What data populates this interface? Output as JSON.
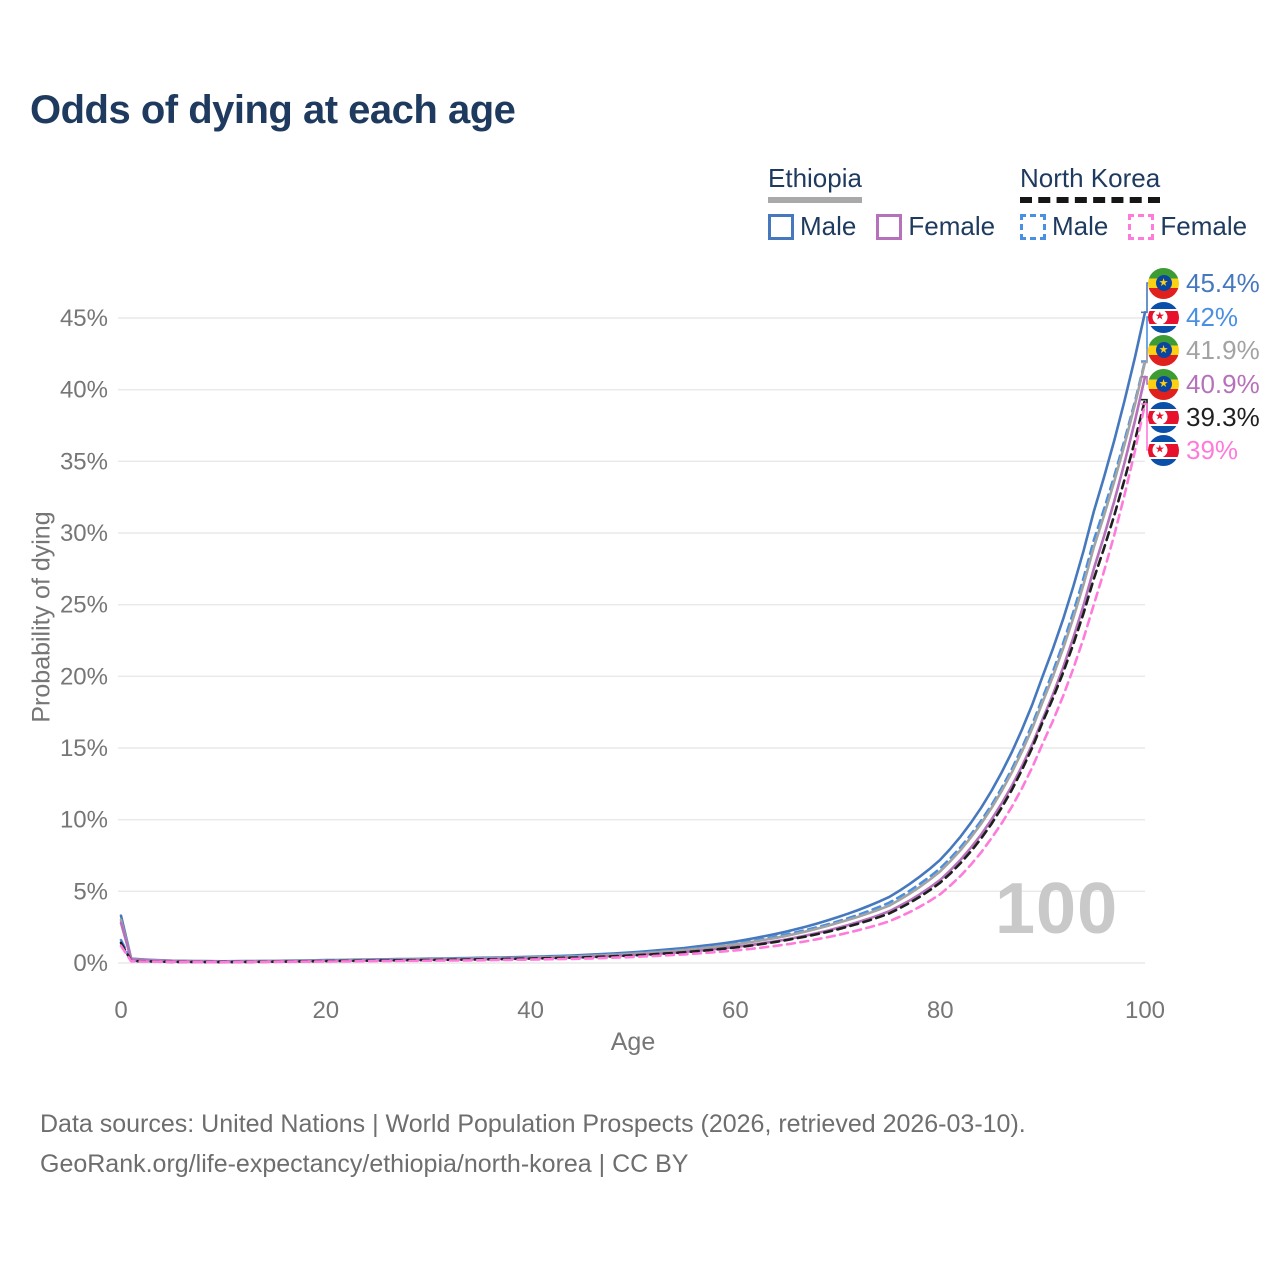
{
  "title": "Odds of dying at each age",
  "legend": {
    "groups": [
      {
        "name": "Ethiopia",
        "line_style": "solid",
        "underline_color": "#a9a9a9",
        "items": [
          {
            "label": "Male",
            "color": "#4678be"
          },
          {
            "label": "Female",
            "color": "#b671bb"
          }
        ]
      },
      {
        "name": "North Korea",
        "line_style": "dashed",
        "underline_color": "#161616",
        "items": [
          {
            "label": "Male",
            "color": "#4a90e2"
          },
          {
            "label": "Female",
            "color": "#ff7bdb"
          }
        ]
      }
    ]
  },
  "chart_data": {
    "type": "line",
    "title": "Odds of dying at each age",
    "xlabel": "Age",
    "ylabel": "Probability of dying",
    "values_unit": "percent",
    "xlim": [
      0,
      100
    ],
    "ylim": [
      0,
      47
    ],
    "grid": "horizontal-only",
    "legend_position": "top-right",
    "xtick_values": [
      0,
      20,
      40,
      60,
      80,
      100
    ],
    "xtick_labels": [
      "0",
      "20",
      "40",
      "60",
      "80",
      "100"
    ],
    "ytick_values": [
      0,
      5,
      10,
      15,
      20,
      25,
      30,
      35,
      40,
      45
    ],
    "ytick_labels": [
      "0%",
      "5%",
      "10%",
      "15%",
      "20%",
      "25%",
      "30%",
      "35%",
      "40%",
      "45%"
    ],
    "x": [
      0,
      1,
      5,
      10,
      15,
      20,
      25,
      30,
      35,
      40,
      45,
      50,
      55,
      60,
      65,
      70,
      75,
      80,
      85,
      90,
      95,
      100
    ],
    "series": [
      {
        "name": "Ethiopia Male",
        "country": "Ethiopia",
        "sex": "Male",
        "style": "solid",
        "color": "#4678be",
        "end_value": 45.4,
        "values": [
          3.3,
          0.3,
          0.16,
          0.12,
          0.15,
          0.2,
          0.25,
          0.3,
          0.36,
          0.43,
          0.55,
          0.75,
          1.05,
          1.5,
          2.2,
          3.2,
          4.6,
          7.2,
          12.0,
          20.0,
          31.5,
          45.4
        ]
      },
      {
        "name": "North Korea Male",
        "country": "North Korea",
        "sex": "Male",
        "style": "dashed",
        "color": "#4a90e2",
        "end_value": 42.0,
        "values": [
          1.6,
          0.16,
          0.09,
          0.07,
          0.11,
          0.17,
          0.22,
          0.27,
          0.33,
          0.4,
          0.5,
          0.68,
          0.95,
          1.35,
          2.0,
          2.9,
          4.2,
          6.6,
          11.0,
          18.5,
          29.5,
          42.0
        ]
      },
      {
        "name": "Ethiopia Both sexes",
        "country": "Ethiopia",
        "sex": "Both",
        "style": "solid",
        "color": "#a3a3a3",
        "end_value": 41.9,
        "values": [
          3.0,
          0.27,
          0.14,
          0.1,
          0.13,
          0.17,
          0.21,
          0.26,
          0.31,
          0.37,
          0.47,
          0.64,
          0.9,
          1.3,
          1.9,
          2.8,
          4.0,
          6.4,
          10.8,
          18.2,
          29.0,
          41.9
        ]
      },
      {
        "name": "Ethiopia Female",
        "country": "Ethiopia",
        "sex": "Female",
        "style": "solid",
        "color": "#b671bb",
        "end_value": 40.9,
        "values": [
          2.8,
          0.25,
          0.13,
          0.09,
          0.11,
          0.14,
          0.18,
          0.22,
          0.26,
          0.32,
          0.4,
          0.55,
          0.77,
          1.12,
          1.65,
          2.45,
          3.6,
          5.8,
          10.0,
          17.0,
          27.5,
          40.9
        ]
      },
      {
        "name": "North Korea Both sexes",
        "country": "North Korea",
        "sex": "Both",
        "style": "dashed",
        "color": "#1f1f1f",
        "end_value": 39.3,
        "values": [
          1.4,
          0.14,
          0.08,
          0.06,
          0.09,
          0.13,
          0.17,
          0.21,
          0.25,
          0.31,
          0.39,
          0.53,
          0.75,
          1.08,
          1.6,
          2.35,
          3.45,
          5.6,
          9.7,
          16.8,
          26.8,
          39.3
        ]
      },
      {
        "name": "North Korea Female",
        "country": "North Korea",
        "sex": "Female",
        "style": "dashed",
        "color": "#ff7bdb",
        "end_value": 39.0,
        "values": [
          1.2,
          0.12,
          0.07,
          0.05,
          0.08,
          0.1,
          0.13,
          0.16,
          0.19,
          0.24,
          0.3,
          0.42,
          0.6,
          0.88,
          1.3,
          1.95,
          2.9,
          4.8,
          8.7,
          15.3,
          25.0,
          39.0
        ]
      }
    ]
  },
  "end_labels": [
    {
      "flag": "ethiopia",
      "text": "45.4%",
      "color": "#4678be"
    },
    {
      "flag": "north-korea",
      "text": "42%",
      "color": "#4a90e2"
    },
    {
      "flag": "ethiopia",
      "text": "41.9%",
      "color": "#a3a3a3"
    },
    {
      "flag": "ethiopia",
      "text": "40.9%",
      "color": "#b671bb"
    },
    {
      "flag": "north-korea",
      "text": "39.3%",
      "color": "#1f1f1f"
    },
    {
      "flag": "north-korea",
      "text": "39%",
      "color": "#ff7bdb"
    }
  ],
  "watermark": "100",
  "icons": {
    "ethiopia_flag": "ethiopia-flag-icon",
    "north_korea_flag": "north-korea-flag-icon",
    "star_glyph": "★"
  },
  "footer": {
    "line1": "Data sources: United Nations | World Population Prospects (2026, retrieved 2026-03-10).",
    "line2": "GeoRank.org/life-expectancy/ethiopia/north-korea | CC BY"
  }
}
